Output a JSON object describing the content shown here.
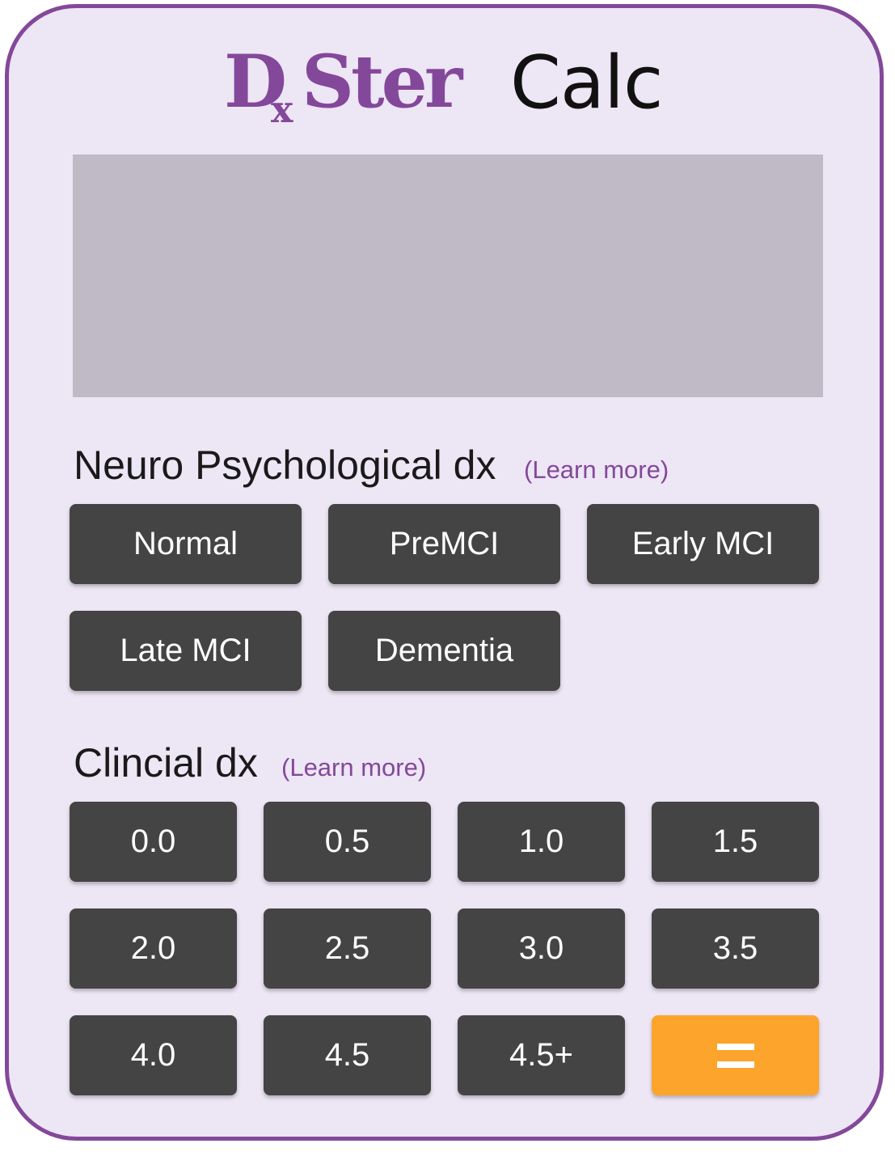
{
  "logo": {
    "dx_main": "D",
    "dx_sub": "x",
    "ster": "Ster",
    "calc": "Calc"
  },
  "display": {
    "value": ""
  },
  "neuro": {
    "title": "Neuro Psychological dx",
    "learn_more": "(Learn more)",
    "buttons": [
      "Normal",
      "PreMCI",
      "Early MCI",
      "Late MCI",
      "Dementia"
    ]
  },
  "clinical": {
    "title": "Clincial dx",
    "learn_more": "(Learn more)",
    "buttons": [
      "0.0",
      "0.5",
      "1.0",
      "1.5",
      "2.0",
      "2.5",
      "3.0",
      "3.5",
      "4.0",
      "4.5",
      "4.5+"
    ],
    "equals_label": "="
  },
  "colors": {
    "brand_purple": "#84489a",
    "frame_bg": "#ede6f5",
    "display_bg": "#c0b9c6",
    "key_bg": "#444444",
    "equals_bg": "#fca42b"
  },
  "icons": {
    "equals": "equals-icon"
  }
}
